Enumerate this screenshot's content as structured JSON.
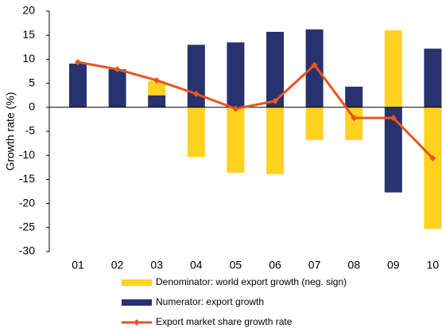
{
  "chart_data": {
    "type": "combo",
    "y_label": "Growth rate (%)",
    "categories": [
      "01",
      "02",
      "03",
      "04",
      "05",
      "06",
      "07",
      "08",
      "09",
      "10"
    ],
    "ylim": [
      -30,
      20
    ],
    "yticks": [
      -30,
      -25,
      -20,
      -15,
      -10,
      -5,
      0,
      5,
      10,
      15,
      20
    ],
    "series": [
      {
        "name": "Numerator: export growth",
        "type": "bar",
        "color": "#27326e",
        "values": [
          9.1,
          7.9,
          2.5,
          13,
          13.5,
          15.7,
          16.2,
          4.3,
          -17.7,
          12.2
        ]
      },
      {
        "name": "Denominator: world export growth (neg. sign)",
        "type": "bar",
        "color": "#ffd21f",
        "values": [
          0,
          0,
          3,
          -10.3,
          -13.6,
          -13.9,
          -6.8,
          -6.8,
          16,
          -25.3
        ]
      },
      {
        "name": "Export market share growth rate",
        "type": "line",
        "color": "#e8541c",
        "values": [
          9.4,
          7.9,
          5.6,
          2.8,
          -0.3,
          1.3,
          8.8,
          -2.2,
          -2.2,
          -10.6
        ]
      }
    ],
    "legend_order": [
      1,
      0,
      2
    ]
  }
}
